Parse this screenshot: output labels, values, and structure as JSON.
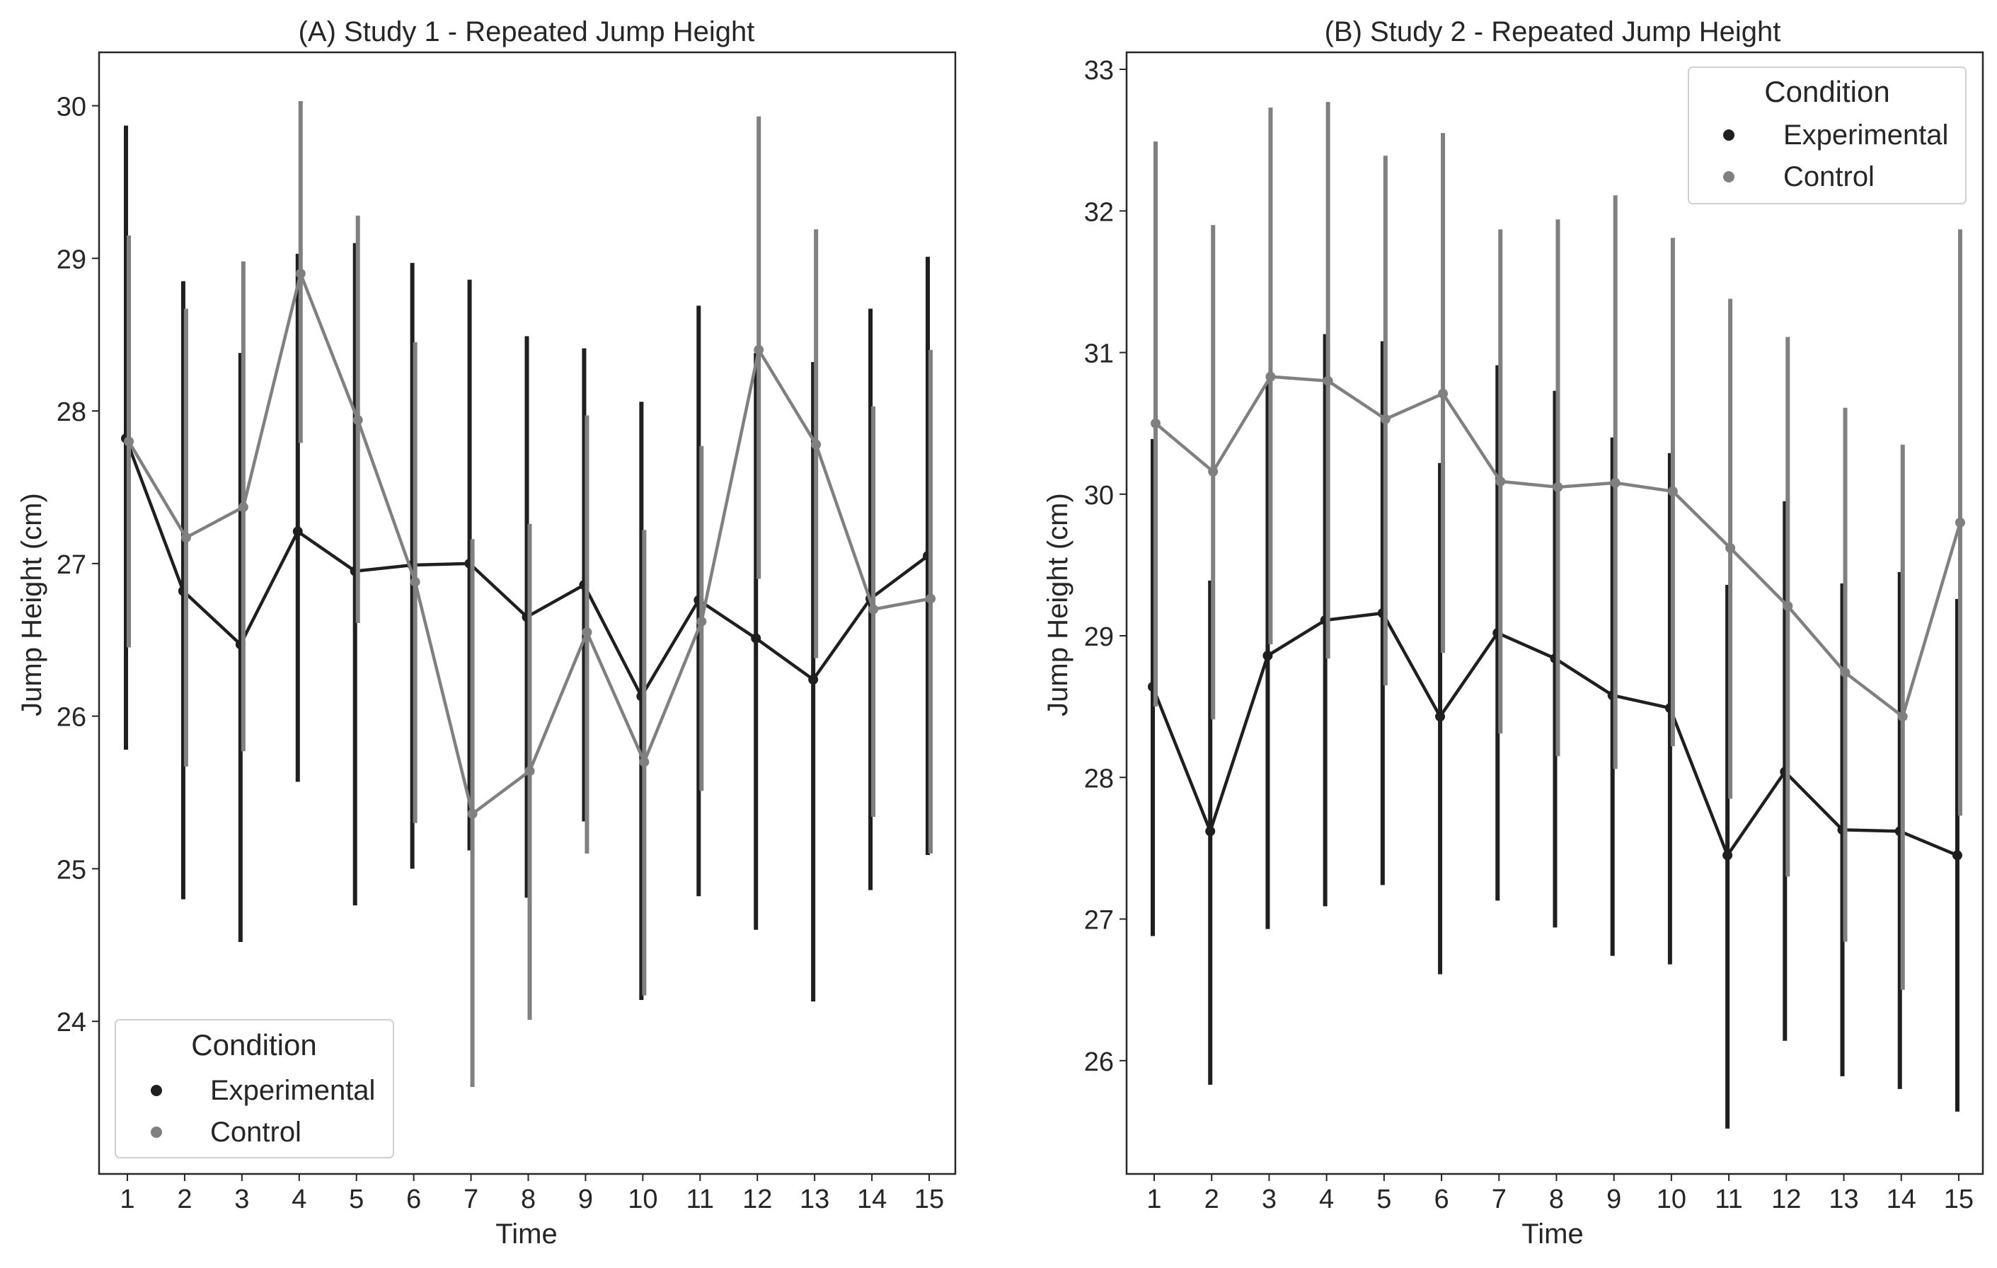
{
  "colors": {
    "experimental": "#1f1f1f",
    "control": "#808080",
    "axis": "#262626"
  },
  "chart_data": [
    {
      "type": "line",
      "title": "(A) Study 1 - Repeated Jump Height",
      "xlabel": "Time",
      "ylabel": "Jump Height (cm)",
      "x": [
        1,
        2,
        3,
        4,
        5,
        6,
        7,
        8,
        9,
        10,
        11,
        12,
        13,
        14,
        15
      ],
      "xticks": [
        "1",
        "2",
        "3",
        "4",
        "5",
        "6",
        "7",
        "8",
        "9",
        "10",
        "11",
        "12",
        "13",
        "14",
        "15"
      ],
      "ylim": [
        23.0,
        30.35
      ],
      "yticks": [
        24,
        25,
        26,
        27,
        28,
        29,
        30
      ],
      "ytick_labels": [
        "24",
        "25",
        "26",
        "27",
        "28",
        "29",
        "30"
      ],
      "legend": {
        "title": "Condition",
        "position": "lower-left"
      },
      "series": [
        {
          "name": "Experimental",
          "color_key": "experimental",
          "values": [
            27.82,
            26.82,
            26.47,
            27.21,
            26.95,
            26.99,
            27.0,
            26.65,
            26.86,
            26.13,
            26.76,
            26.51,
            26.24,
            26.77,
            27.05
          ],
          "ci_low": [
            25.78,
            24.8,
            24.52,
            25.57,
            24.76,
            25.0,
            25.12,
            24.81,
            25.31,
            24.14,
            24.82,
            24.6,
            24.13,
            24.86,
            25.09
          ],
          "ci_high": [
            29.87,
            28.85,
            28.38,
            29.03,
            29.1,
            28.97,
            28.86,
            28.49,
            28.41,
            28.06,
            28.69,
            28.38,
            28.32,
            28.67,
            29.01
          ]
        },
        {
          "name": "Control",
          "color_key": "control",
          "values": [
            27.8,
            27.17,
            27.37,
            28.9,
            27.94,
            26.88,
            25.36,
            25.64,
            26.55,
            25.7,
            26.62,
            28.4,
            27.78,
            26.7,
            26.77
          ],
          "ci_low": [
            26.45,
            25.67,
            25.77,
            27.79,
            26.61,
            25.3,
            23.57,
            24.01,
            25.1,
            24.17,
            25.51,
            26.9,
            26.38,
            25.34,
            25.1
          ],
          "ci_high": [
            29.15,
            28.67,
            28.98,
            30.03,
            29.28,
            28.45,
            27.16,
            27.26,
            27.97,
            27.22,
            27.77,
            29.93,
            29.19,
            28.03,
            28.4
          ]
        }
      ]
    },
    {
      "type": "line",
      "title": "(B) Study 2 - Repeated Jump Height",
      "xlabel": "Time",
      "ylabel": "Jump Height (cm)",
      "x": [
        1,
        2,
        3,
        4,
        5,
        6,
        7,
        8,
        9,
        10,
        11,
        12,
        13,
        14,
        15
      ],
      "xticks": [
        "1",
        "2",
        "3",
        "4",
        "5",
        "6",
        "7",
        "8",
        "9",
        "10",
        "11",
        "12",
        "13",
        "14",
        "15"
      ],
      "ylim": [
        25.2,
        33.12
      ],
      "yticks": [
        26,
        27,
        28,
        29,
        30,
        31,
        32,
        33
      ],
      "ytick_labels": [
        "26",
        "27",
        "28",
        "29",
        "30",
        "31",
        "32",
        "33"
      ],
      "legend": {
        "title": "Condition",
        "position": "upper-right"
      },
      "series": [
        {
          "name": "Experimental",
          "color_key": "experimental",
          "values": [
            28.64,
            27.62,
            28.86,
            29.11,
            29.16,
            28.43,
            29.02,
            28.84,
            28.58,
            28.49,
            27.45,
            28.04,
            27.63,
            27.62,
            27.45
          ],
          "ci_low": [
            26.88,
            25.83,
            26.93,
            27.09,
            27.24,
            26.61,
            27.13,
            26.94,
            26.74,
            26.68,
            25.52,
            26.14,
            25.89,
            25.8,
            25.64
          ],
          "ci_high": [
            30.39,
            29.39,
            30.79,
            31.13,
            31.08,
            30.22,
            30.91,
            30.73,
            30.4,
            30.29,
            29.36,
            29.95,
            29.37,
            29.45,
            29.26
          ]
        },
        {
          "name": "Control",
          "color_key": "control",
          "values": [
            30.5,
            30.16,
            30.83,
            30.8,
            30.53,
            30.71,
            30.09,
            30.05,
            30.08,
            30.02,
            29.62,
            29.21,
            28.74,
            28.43,
            29.8
          ],
          "ci_low": [
            28.5,
            28.41,
            28.94,
            28.84,
            28.65,
            28.88,
            28.31,
            28.15,
            28.06,
            28.22,
            27.85,
            27.3,
            26.84,
            26.5,
            27.73
          ],
          "ci_high": [
            32.49,
            31.9,
            32.73,
            32.77,
            32.39,
            32.55,
            31.87,
            31.94,
            32.11,
            31.81,
            31.38,
            31.11,
            30.61,
            30.35,
            31.87
          ]
        }
      ]
    }
  ]
}
